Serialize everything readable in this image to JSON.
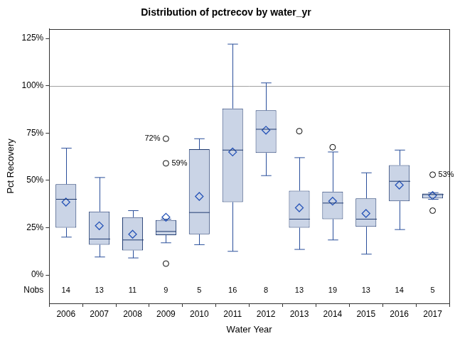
{
  "chart_data": {
    "type": "box",
    "title": "Distribution of pctrecov by water_yr",
    "x_label": "Water Year",
    "y_label": "Pct Recovery",
    "categories": [
      "2006",
      "2007",
      "2008",
      "2009",
      "2010",
      "2011",
      "2012",
      "2013",
      "2014",
      "2015",
      "2016",
      "2017"
    ],
    "whisker_low": [
      20,
      9.5,
      9,
      17,
      16,
      12.5,
      52.5,
      13.5,
      18.5,
      11,
      24,
      40
    ],
    "q1": [
      25,
      16,
      13,
      21,
      21.5,
      38.5,
      64.5,
      25,
      29.5,
      25.5,
      39,
      40.5
    ],
    "median": [
      40,
      19,
      18.5,
      23,
      33,
      66,
      77,
      29.5,
      38,
      29.5,
      49.5,
      42.5
    ],
    "q3": [
      48,
      33.5,
      30.5,
      29,
      66.5,
      88,
      87,
      44.5,
      44,
      40.5,
      58,
      43
    ],
    "whisker_high": [
      67,
      51.5,
      34,
      29.5,
      72,
      122,
      101.5,
      62,
      65,
      54,
      66,
      43.5
    ],
    "mean": [
      38.5,
      26,
      21.5,
      30.5,
      41.5,
      65,
      76.5,
      35.5,
      39,
      32.5,
      47.5,
      42
    ],
    "outliers": [
      [],
      [],
      [],
      [
        72,
        59,
        6
      ],
      [],
      [],
      [],
      [
        76
      ],
      [
        67.5
      ],
      [],
      [],
      [
        53,
        34
      ]
    ],
    "outlier_labels": [
      [],
      [],
      [],
      [
        "72%",
        "59%",
        null
      ],
      [],
      [],
      [],
      [
        null
      ],
      [
        null
      ],
      [],
      [],
      [
        "53%",
        null
      ]
    ],
    "nobs_label": "Nobs",
    "nobs": [
      14,
      13,
      11,
      9,
      5,
      16,
      8,
      13,
      19,
      13,
      14,
      5
    ],
    "ref_line": 100,
    "color": "#cad4e6",
    "ylim": [
      -15,
      130
    ],
    "yticks": [
      {
        "value": 0,
        "label": "0%"
      },
      {
        "value": 25,
        "label": "25%"
      },
      {
        "value": 50,
        "label": "50%"
      },
      {
        "value": 75,
        "label": "75%"
      },
      {
        "value": 100,
        "label": "100%"
      },
      {
        "value": 125,
        "label": "125%"
      }
    ],
    "grid": false
  }
}
